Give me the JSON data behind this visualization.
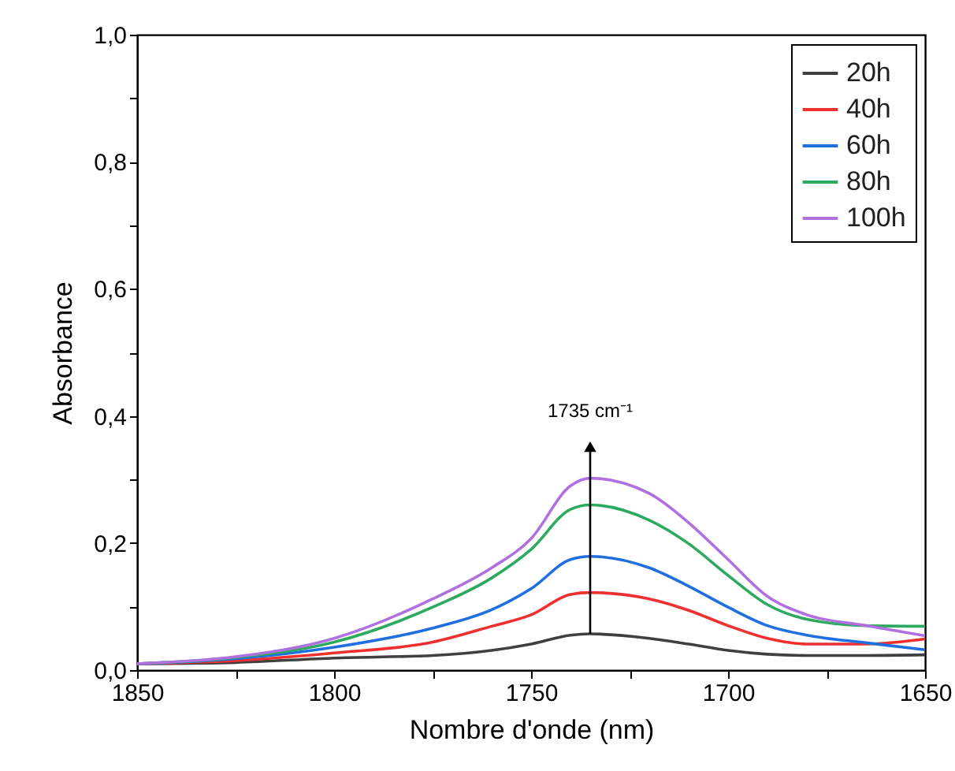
{
  "chart_data": {
    "type": "line",
    "xlabel": "Nombre d'onde (nm)",
    "ylabel": "Absorbance",
    "x": [
      1850,
      1825,
      1800,
      1775,
      1760,
      1750,
      1740,
      1735,
      1720,
      1710,
      1700,
      1690,
      1680,
      1665,
      1650
    ],
    "series": [
      {
        "name": "20h",
        "color": "#404040",
        "values": [
          0.01,
          0.012,
          0.019,
          0.023,
          0.031,
          0.041,
          0.055,
          0.057,
          0.05,
          0.041,
          0.031,
          0.025,
          0.023,
          0.023,
          0.024
        ]
      },
      {
        "name": "40h",
        "color": "#f03030",
        "values": [
          0.01,
          0.015,
          0.027,
          0.044,
          0.069,
          0.087,
          0.119,
          0.122,
          0.112,
          0.094,
          0.07,
          0.05,
          0.041,
          0.041,
          0.049
        ]
      },
      {
        "name": "60h",
        "color": "#1f6fe0",
        "values": [
          0.01,
          0.018,
          0.036,
          0.066,
          0.095,
          0.128,
          0.174,
          0.179,
          0.161,
          0.132,
          0.099,
          0.07,
          0.055,
          0.043,
          0.032
        ]
      },
      {
        "name": "80h",
        "color": "#2eaa60",
        "values": [
          0.01,
          0.02,
          0.044,
          0.099,
          0.145,
          0.19,
          0.253,
          0.26,
          0.236,
          0.199,
          0.149,
          0.103,
          0.08,
          0.07,
          0.069
        ]
      },
      {
        "name": "100h",
        "color": "#b070e0",
        "values": [
          0.01,
          0.021,
          0.05,
          0.112,
          0.161,
          0.207,
          0.29,
          0.302,
          0.278,
          0.232,
          0.174,
          0.116,
          0.087,
          0.07,
          0.054
        ]
      }
    ],
    "xlim": [
      1850,
      1650
    ],
    "xticks": [
      1850,
      {
        "value": 1825,
        "label": null
      },
      1800,
      {
        "value": 1775,
        "label": null
      },
      1750,
      {
        "value": 1725,
        "label": null
      },
      1700,
      {
        "value": 1675,
        "label": null
      },
      1650
    ],
    "ylim": [
      0,
      1
    ],
    "yticks": [
      {
        "value": 0,
        "label": "0,0"
      },
      {
        "value": 0.1,
        "label": null
      },
      {
        "value": 0.2,
        "label": "0,2"
      },
      {
        "value": 0.3,
        "label": null
      },
      {
        "value": 0.4,
        "label": "0,4"
      },
      {
        "value": 0.5,
        "label": null
      },
      {
        "value": 0.6,
        "label": "0,6"
      },
      {
        "value": 0.7,
        "label": null
      },
      {
        "value": 0.8,
        "label": "0,8"
      },
      {
        "value": 0.9,
        "label": null
      },
      {
        "value": 1,
        "label": "1,0"
      }
    ],
    "annotations": [
      "1735 cm⁻¹"
    ],
    "legend": "top right",
    "grid": false,
    "marker": "none",
    "line_style": "solid"
  }
}
